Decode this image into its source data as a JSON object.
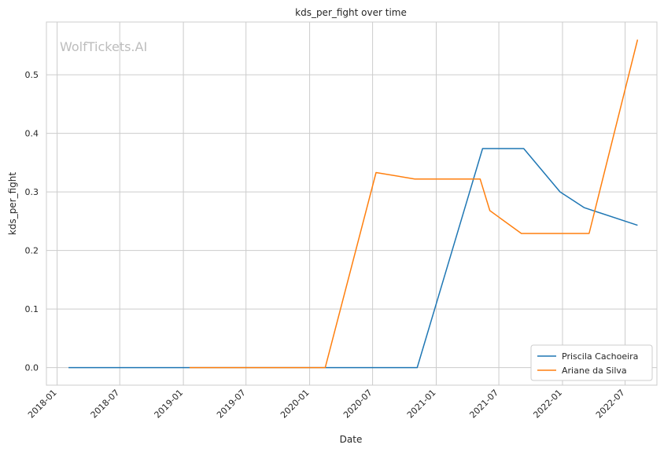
{
  "chart_data": {
    "type": "line",
    "title": "kds_per_fight over time",
    "xlabel": "Date",
    "ylabel": "kds_per_fight",
    "watermark": "WolfTickets.AI",
    "x_type": "date",
    "xlim": [
      "2017-12-01",
      "2022-10-01"
    ],
    "ylim": [
      -0.03,
      0.59
    ],
    "x_ticks": [
      "2018-01",
      "2018-07",
      "2019-01",
      "2019-07",
      "2020-01",
      "2020-07",
      "2021-01",
      "2021-07",
      "2022-01",
      "2022-07"
    ],
    "y_ticks": [
      "0.0",
      "0.1",
      "0.2",
      "0.3",
      "0.4",
      "0.5"
    ],
    "grid": true,
    "legend_position": "bottom-right",
    "series": [
      {
        "name": "Priscila Cachoeira",
        "color": "#1f77b4",
        "points": [
          {
            "x": "2018-02-03",
            "y": 0.0
          },
          {
            "x": "2020-11-07",
            "y": 0.0
          },
          {
            "x": "2021-05-15",
            "y": 0.374
          },
          {
            "x": "2021-09-11",
            "y": 0.374
          },
          {
            "x": "2021-12-25",
            "y": 0.3
          },
          {
            "x": "2022-03-05",
            "y": 0.273
          },
          {
            "x": "2022-08-06",
            "y": 0.243
          }
        ]
      },
      {
        "name": "Ariane da Silva",
        "color": "#ff7f0e",
        "points": [
          {
            "x": "2019-01-19",
            "y": 0.0
          },
          {
            "x": "2020-02-15",
            "y": 0.0
          },
          {
            "x": "2020-07-11",
            "y": 0.333
          },
          {
            "x": "2020-10-31",
            "y": 0.322
          },
          {
            "x": "2021-05-08",
            "y": 0.322
          },
          {
            "x": "2021-06-05",
            "y": 0.268
          },
          {
            "x": "2021-09-04",
            "y": 0.229
          },
          {
            "x": "2022-03-19",
            "y": 0.229
          },
          {
            "x": "2022-08-06",
            "y": 0.56
          }
        ]
      }
    ]
  }
}
